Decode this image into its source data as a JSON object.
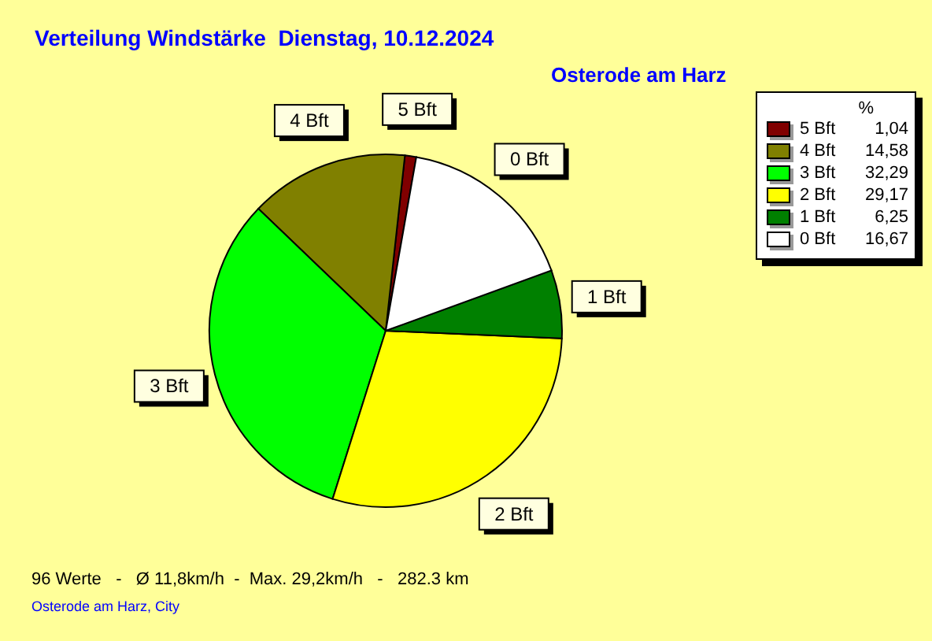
{
  "chart_data": {
    "type": "pie",
    "title": "Verteilung Windstärke  Dienstag, 10.12.2024",
    "subtitle": "Osterode am Harz",
    "categories": [
      "5 Bft",
      "4 Bft",
      "3 Bft",
      "2 Bft",
      "1 Bft",
      "0 Bft"
    ],
    "values": [
      1.04,
      14.58,
      32.29,
      29.17,
      6.25,
      16.67
    ],
    "value_labels": [
      "1,04",
      "14,58",
      "32,29",
      "29,17",
      "6,25",
      "16,67"
    ],
    "colors": [
      "#800000",
      "#808000",
      "#00ff00",
      "#ffff00",
      "#008000",
      "#ffffff"
    ],
    "legend": "top right",
    "legend_title": "%",
    "annotations": [
      "96 Werte   -   Ø 11,8km/h  -  Max. 29,2km/h   -   282.3 km",
      "Osterode am Harz, City"
    ]
  }
}
